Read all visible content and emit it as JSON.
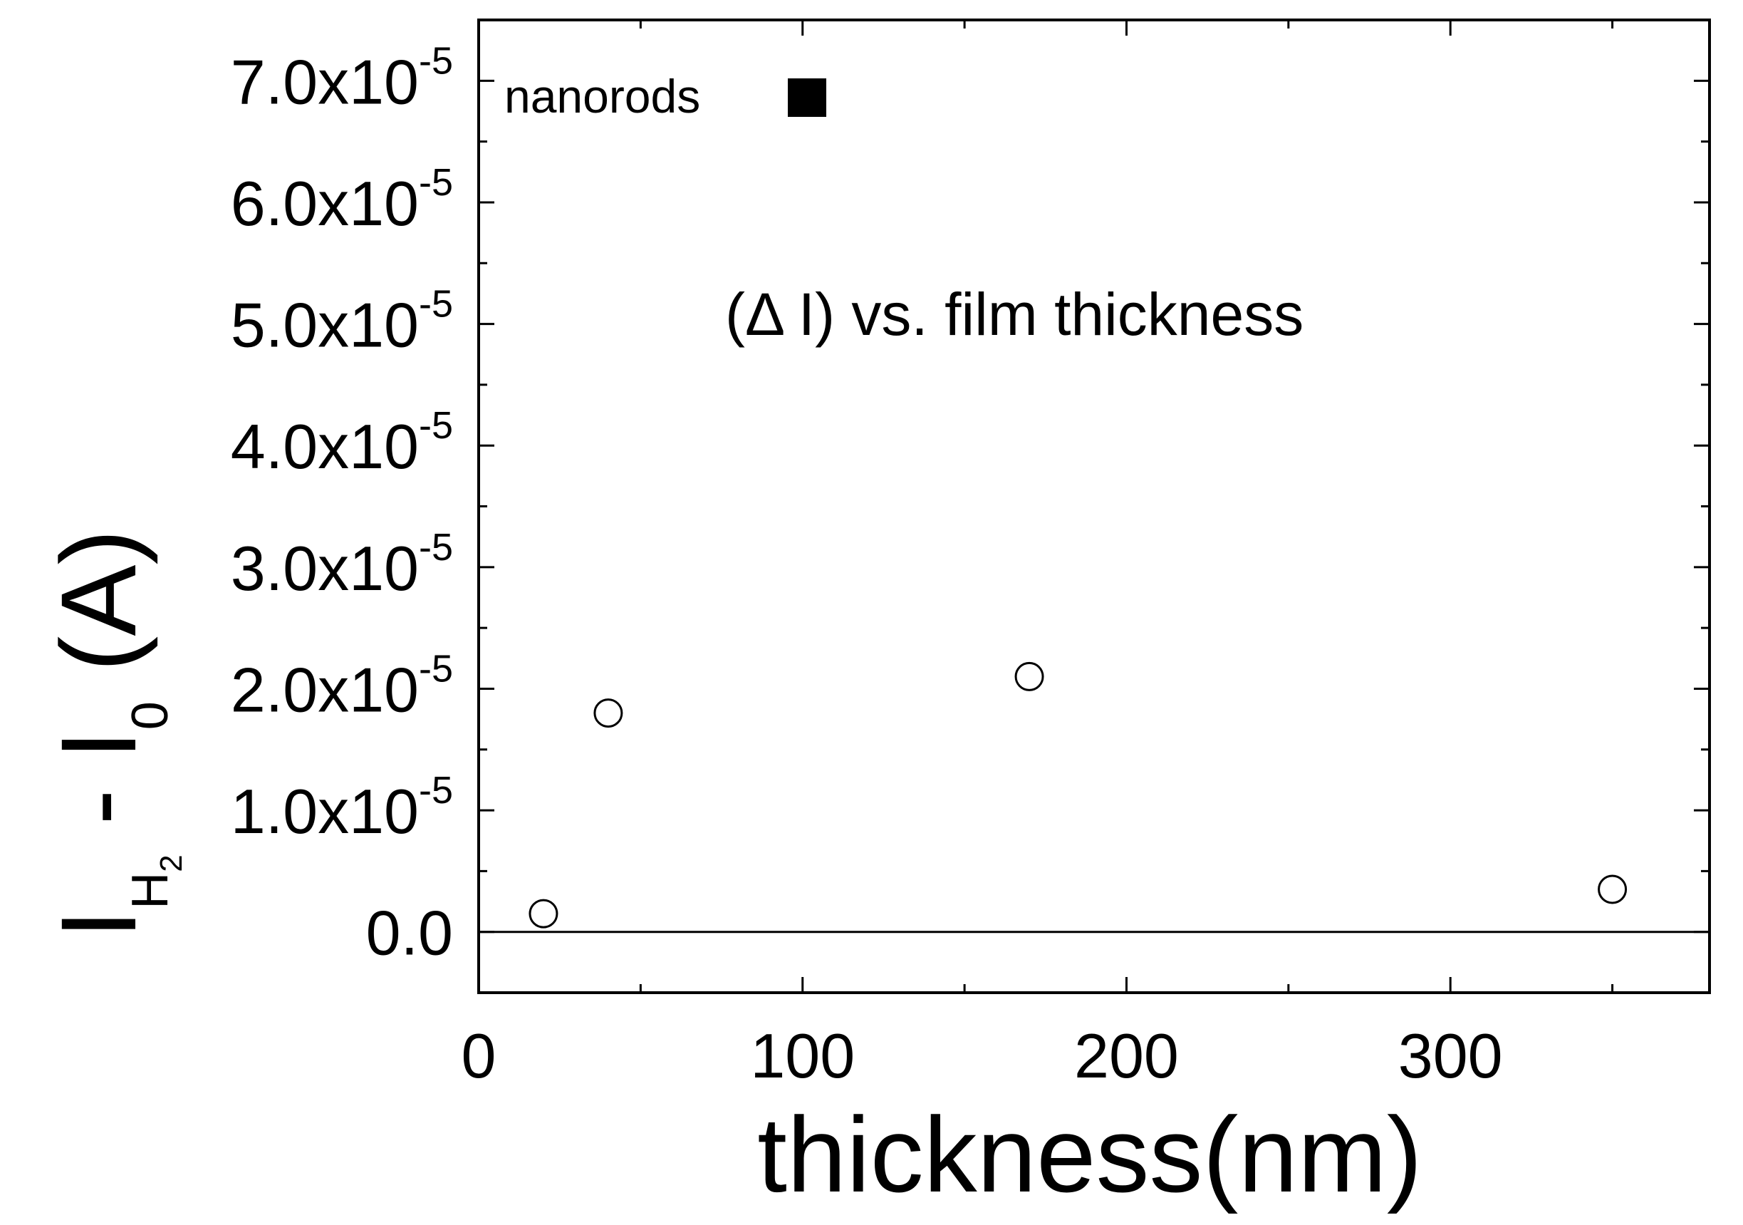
{
  "chart_data": {
    "type": "scatter",
    "annotation": "(Δ   I) vs. film thickness",
    "xlabel": "thickness(nm)",
    "ylabel": {
      "main": "I",
      "sub_main": "H",
      "sub_sub": "2",
      "mid": " - I",
      "mid_sub": "0",
      "unit": " (A)"
    },
    "xlim": [
      0,
      380
    ],
    "ylim": [
      -5e-06,
      7.5e-05
    ],
    "x_ticks": [
      0,
      100,
      200,
      300
    ],
    "x_minor_ticks": [
      50,
      150,
      250,
      350
    ],
    "y_ticks": [
      {
        "value": 0,
        "mantissa": "0.0",
        "exponent": ""
      },
      {
        "value": 1e-05,
        "mantissa": "1.0x10",
        "exponent": "-5"
      },
      {
        "value": 2e-05,
        "mantissa": "2.0x10",
        "exponent": "-5"
      },
      {
        "value": 3e-05,
        "mantissa": "3.0x10",
        "exponent": "-5"
      },
      {
        "value": 4e-05,
        "mantissa": "4.0x10",
        "exponent": "-5"
      },
      {
        "value": 5e-05,
        "mantissa": "5.0x10",
        "exponent": "-5"
      },
      {
        "value": 6e-05,
        "mantissa": "6.0x10",
        "exponent": "-5"
      },
      {
        "value": 7e-05,
        "mantissa": "7.0x10",
        "exponent": "-5"
      }
    ],
    "y_minor_ticks": [
      5e-06,
      1.5e-05,
      2.5e-05,
      3.5e-05,
      4.5e-05,
      5.5e-05,
      6.5e-05
    ],
    "zero_line": true,
    "grid": false,
    "legend": {
      "label": "nanorods",
      "marker": "filled-square",
      "placement": "top-left"
    },
    "series": [
      {
        "marker": "open-circle",
        "x": [
          20,
          40,
          170,
          350
        ],
        "y": [
          1.5e-06,
          1.8e-05,
          2.1e-05,
          3.5e-06
        ]
      }
    ],
    "colors": {
      "ink": "#000000",
      "background": "#ffffff"
    }
  }
}
